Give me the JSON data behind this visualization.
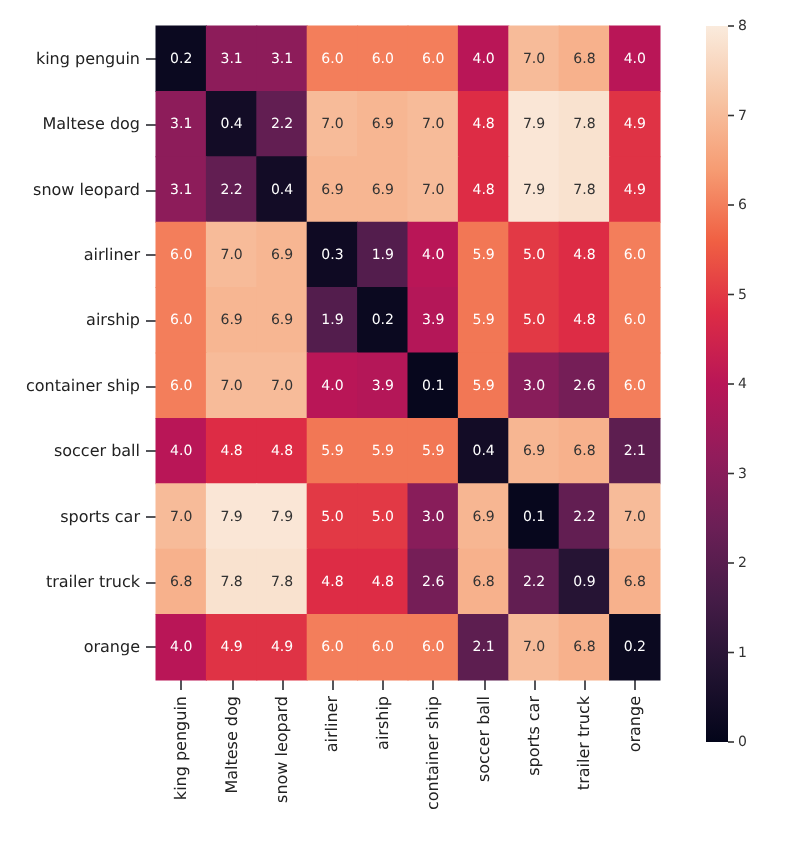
{
  "chart_data": {
    "type": "heatmap",
    "categories": [
      "king penguin",
      "Maltese dog",
      "snow leopard",
      "airliner",
      "airship",
      "container ship",
      "soccer ball",
      "sports car",
      "trailer truck",
      "orange"
    ],
    "y_categories": [
      "king penguin",
      "Maltese dog",
      "snow leopard",
      "airliner",
      "airship",
      "container ship",
      "soccer ball",
      "sports car",
      "trailer truck",
      "orange"
    ],
    "cells": [
      [
        0.2,
        3.1,
        3.1,
        6.0,
        6.0,
        6.0,
        4.0,
        7.0,
        6.8,
        4.0
      ],
      [
        3.1,
        0.4,
        2.2,
        7.0,
        6.9,
        7.0,
        4.8,
        7.9,
        7.8,
        4.9
      ],
      [
        3.1,
        2.2,
        0.4,
        6.9,
        6.9,
        7.0,
        4.8,
        7.9,
        7.8,
        4.9
      ],
      [
        6.0,
        7.0,
        6.9,
        0.3,
        1.9,
        4.0,
        5.9,
        5.0,
        4.8,
        6.0
      ],
      [
        6.0,
        6.9,
        6.9,
        1.9,
        0.2,
        3.9,
        5.9,
        5.0,
        4.8,
        6.0
      ],
      [
        6.0,
        7.0,
        7.0,
        4.0,
        3.9,
        0.1,
        5.9,
        3.0,
        2.6,
        6.0
      ],
      [
        4.0,
        4.8,
        4.8,
        5.9,
        5.9,
        5.9,
        0.4,
        6.9,
        6.8,
        2.1
      ],
      [
        7.0,
        7.9,
        7.9,
        5.0,
        5.0,
        3.0,
        6.9,
        0.1,
        2.2,
        7.0
      ],
      [
        6.8,
        7.8,
        7.8,
        4.8,
        4.8,
        2.6,
        6.8,
        2.2,
        0.9,
        6.8
      ],
      [
        4.0,
        4.9,
        4.9,
        6.0,
        6.0,
        6.0,
        2.1,
        7.0,
        6.8,
        0.2
      ]
    ],
    "cell_labels": [
      [
        "0.2",
        "3.1",
        "3.1",
        "6.0",
        "6.0",
        "6.0",
        "4.0",
        "7.0",
        "6.8",
        "4.0"
      ],
      [
        "3.1",
        "0.4",
        "2.2",
        "7.0",
        "6.9",
        "7.0",
        "4.8",
        "7.9",
        "7.8",
        "4.9"
      ],
      [
        "3.1",
        "2.2",
        "0.4",
        "6.9",
        "6.9",
        "7.0",
        "4.8",
        "7.9",
        "7.8",
        "4.9"
      ],
      [
        "6.0",
        "7.0",
        "6.9",
        "0.3",
        "1.9",
        "4.0",
        "5.9",
        "5.0",
        "4.8",
        "6.0"
      ],
      [
        "6.0",
        "6.9",
        "6.9",
        "1.9",
        "0.2",
        "3.9",
        "5.9",
        "5.0",
        "4.8",
        "6.0"
      ],
      [
        "6.0",
        "7.0",
        "7.0",
        "4.0",
        "3.9",
        "0.1",
        "5.9",
        "3.0",
        "2.6",
        "6.0"
      ],
      [
        "4.0",
        "4.8",
        "4.8",
        "5.9",
        "5.9",
        "5.9",
        "0.4",
        "6.9",
        "6.8",
        "2.1"
      ],
      [
        "7.0",
        "7.9",
        "7.9",
        "5.0",
        "5.0",
        "3.0",
        "6.9",
        "0.1",
        "2.2",
        "7.0"
      ],
      [
        "6.8",
        "7.8",
        "7.8",
        "4.8",
        "4.8",
        "2.6",
        "6.8",
        "2.2",
        "0.9",
        "6.8"
      ],
      [
        "4.0",
        "4.9",
        "4.9",
        "6.0",
        "6.0",
        "6.0",
        "2.1",
        "7.0",
        "6.8",
        "0.2"
      ]
    ],
    "clim": [
      0,
      8
    ],
    "cticks": [
      0,
      1,
      2,
      3,
      4,
      5,
      6,
      7,
      8
    ]
  }
}
